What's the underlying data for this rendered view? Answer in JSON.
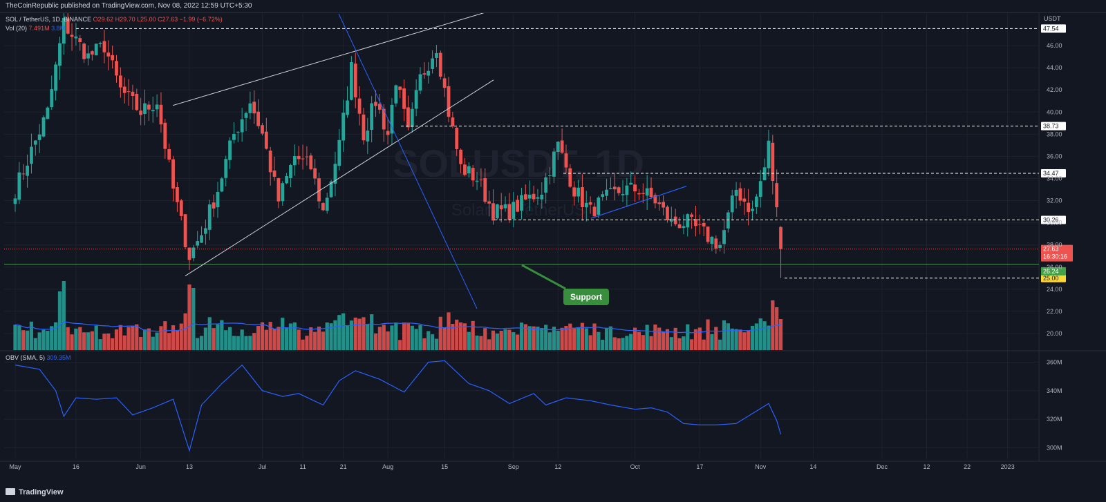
{
  "publisher_line": "TheCoinRepublic published on TradingView.com, Nov 08, 2022 12:59 UTC+5:30",
  "legend": {
    "symbol": "SOL / TetherUS, 1D, BINANCE",
    "ohlc": "O29.62 H29.70 L25.00 C27.63 −1.99 (−6.72%)",
    "vol_label": "Vol (20)",
    "vol_value": "7.491M",
    "vol_ma": "3.8M",
    "obv_label": "OBV (SMA, 5)",
    "obv_value": "309.35M"
  },
  "price_axis_unit": "USDT",
  "watermark": {
    "symbol": "SOLUSDT, 1D",
    "name": "Solana / TetherUS"
  },
  "footer_logo": "TradingView",
  "support_label": "Support",
  "colors": {
    "up": "#26a69a",
    "down": "#ef5350",
    "bg": "#131722",
    "grid": "#1e222d",
    "trend": "#2962ff",
    "support": "#43a047",
    "channel": "#d1d4dc"
  },
  "chart_data": {
    "type": "candlestick",
    "title": "SOL / TetherUS, 1D, BINANCE",
    "price_ylim": [
      18.5,
      49
    ],
    "price_ticks": [
      20,
      22,
      24,
      26,
      28,
      30,
      32,
      34,
      36,
      38,
      40,
      42,
      44,
      46
    ],
    "x_ticks": [
      {
        "label": "May",
        "day": 0
      },
      {
        "label": "16",
        "day": 15
      },
      {
        "label": "Jun",
        "day": 31
      },
      {
        "label": "13",
        "day": 43
      },
      {
        "label": "Jul",
        "day": 61
      },
      {
        "label": "11",
        "day": 71
      },
      {
        "label": "21",
        "day": 81
      },
      {
        "label": "Aug",
        "day": 92
      },
      {
        "label": "15",
        "day": 106
      },
      {
        "label": "Sep",
        "day": 123
      },
      {
        "label": "12",
        "day": 134
      },
      {
        "label": "Oct",
        "day": 153
      },
      {
        "label": "17",
        "day": 169
      },
      {
        "label": "Nov",
        "day": 184
      },
      {
        "label": "14",
        "day": 197
      },
      {
        "label": "Dec",
        "day": 214
      },
      {
        "label": "12",
        "day": 225
      },
      {
        "label": "22",
        "day": 235
      },
      {
        "label": "2023",
        "day": 245
      }
    ],
    "horizontal_levels": [
      {
        "value": 47.54,
        "label": "47.54",
        "style": "dashed",
        "color": "#ffffff"
      },
      {
        "value": 38.73,
        "label": "38.73",
        "style": "dashed",
        "color": "#ffffff"
      },
      {
        "value": 34.47,
        "label": "34.47",
        "style": "dashed",
        "color": "#ffffff"
      },
      {
        "value": 30.26,
        "label": "30.26",
        "style": "dashed",
        "color": "#ffffff"
      },
      {
        "value": 25.0,
        "label": "25.00",
        "style": "dashed",
        "color": "#ffffff"
      },
      {
        "value": 26.24,
        "label": "26.24",
        "style": "solid",
        "color": "#43a047"
      }
    ],
    "last_price": {
      "value": 27.63,
      "label": "27.63",
      "countdown": "16:30:16"
    },
    "price_waypoints": [
      [
        0,
        33
      ],
      [
        8,
        40
      ],
      [
        12,
        48
      ],
      [
        18,
        45
      ],
      [
        22,
        46
      ],
      [
        26,
        42
      ],
      [
        31,
        40
      ],
      [
        35,
        41
      ],
      [
        39,
        33
      ],
      [
        43,
        27
      ],
      [
        46,
        29
      ],
      [
        50,
        33
      ],
      [
        54,
        38
      ],
      [
        58,
        41
      ],
      [
        61,
        38
      ],
      [
        65,
        32
      ],
      [
        69,
        36
      ],
      [
        73,
        35
      ],
      [
        76,
        31
      ],
      [
        80,
        37
      ],
      [
        83,
        44
      ],
      [
        86,
        38
      ],
      [
        89,
        41
      ],
      [
        92,
        38
      ],
      [
        94,
        43
      ],
      [
        97,
        38
      ],
      [
        100,
        43
      ],
      [
        104,
        46
      ],
      [
        107,
        40
      ],
      [
        110,
        35
      ],
      [
        114,
        34
      ],
      [
        118,
        31
      ],
      [
        122,
        31
      ],
      [
        126,
        32
      ],
      [
        130,
        33
      ],
      [
        134,
        37
      ],
      [
        138,
        33
      ],
      [
        142,
        31
      ],
      [
        145,
        32
      ],
      [
        150,
        33
      ],
      [
        154,
        33
      ],
      [
        158,
        32
      ],
      [
        162,
        30
      ],
      [
        166,
        30
      ],
      [
        170,
        29
      ],
      [
        174,
        28
      ],
      [
        178,
        33
      ],
      [
        182,
        31
      ],
      [
        185,
        35
      ],
      [
        186,
        37
      ],
      [
        188,
        31
      ],
      [
        189,
        27.63
      ]
    ],
    "volume_ylim": [
      0,
      125
    ],
    "volume_ma_period": 20,
    "obv": {
      "ylim": [
        292,
        367
      ],
      "ticks": [
        300,
        320,
        340,
        360
      ],
      "tick_labels": [
        "300M",
        "320M",
        "340M",
        "360M"
      ],
      "points": [
        [
          0,
          358
        ],
        [
          6,
          355
        ],
        [
          10,
          340
        ],
        [
          12,
          322
        ],
        [
          15,
          335
        ],
        [
          20,
          334
        ],
        [
          25,
          335
        ],
        [
          29,
          323
        ],
        [
          34,
          328
        ],
        [
          39,
          334
        ],
        [
          43,
          298
        ],
        [
          46,
          330
        ],
        [
          51,
          345
        ],
        [
          56,
          358
        ],
        [
          61,
          340
        ],
        [
          66,
          336
        ],
        [
          70,
          338
        ],
        [
          76,
          330
        ],
        [
          80,
          347
        ],
        [
          84,
          354
        ],
        [
          90,
          348
        ],
        [
          96,
          339
        ],
        [
          102,
          360
        ],
        [
          106,
          361
        ],
        [
          112,
          345
        ],
        [
          117,
          340
        ],
        [
          122,
          331
        ],
        [
          128,
          338
        ],
        [
          131,
          330
        ],
        [
          136,
          335
        ],
        [
          142,
          333
        ],
        [
          147,
          330
        ],
        [
          153,
          327
        ],
        [
          157,
          328
        ],
        [
          161,
          325
        ],
        [
          165,
          317
        ],
        [
          169,
          316
        ],
        [
          173,
          316
        ],
        [
          178,
          317
        ],
        [
          182,
          324
        ],
        [
          186,
          331
        ],
        [
          188,
          319
        ],
        [
          189,
          309.35
        ]
      ]
    },
    "obv_value": 309.35,
    "last_volume": 7.491
  }
}
